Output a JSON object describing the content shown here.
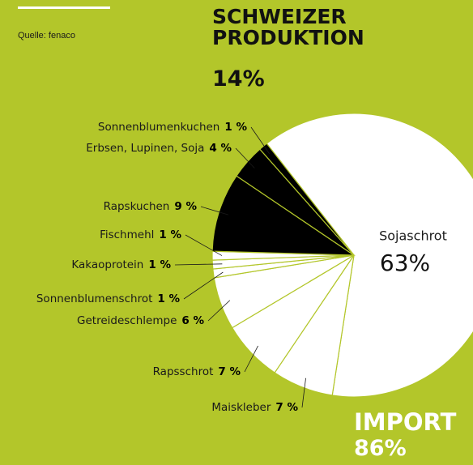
{
  "chart_data": {
    "type": "pie",
    "source": "Quelle: fenaco",
    "categories": [
      "Sojaschrot",
      "Maiskleber",
      "Rapsschrot",
      "Getreideschlempe",
      "Sonnenblumenschrot",
      "Kakaoprotein",
      "Fischmehl",
      "Rapskuchen",
      "Erbsen, Lupinen, Soja",
      "Sonnenblumenkuchen"
    ],
    "values": [
      63,
      7,
      7,
      6,
      1,
      1,
      1,
      9,
      4,
      1
    ],
    "value_labels": [
      "63%",
      "7 %",
      "7 %",
      "6 %",
      "1 %",
      "1 %",
      "1 %",
      "9 %",
      "4 %",
      "1 %"
    ],
    "colors": [
      "#ffffff",
      "#ffffff",
      "#ffffff",
      "#ffffff",
      "#ffffff",
      "#ffffff",
      "#ffffff",
      "#000000",
      "#000000",
      "#000000"
    ],
    "groups": [
      {
        "name": "SCHWEIZER PRODUKTION",
        "value_label": "14%"
      },
      {
        "name": "IMPORT",
        "value_label": "86%"
      }
    ]
  }
}
